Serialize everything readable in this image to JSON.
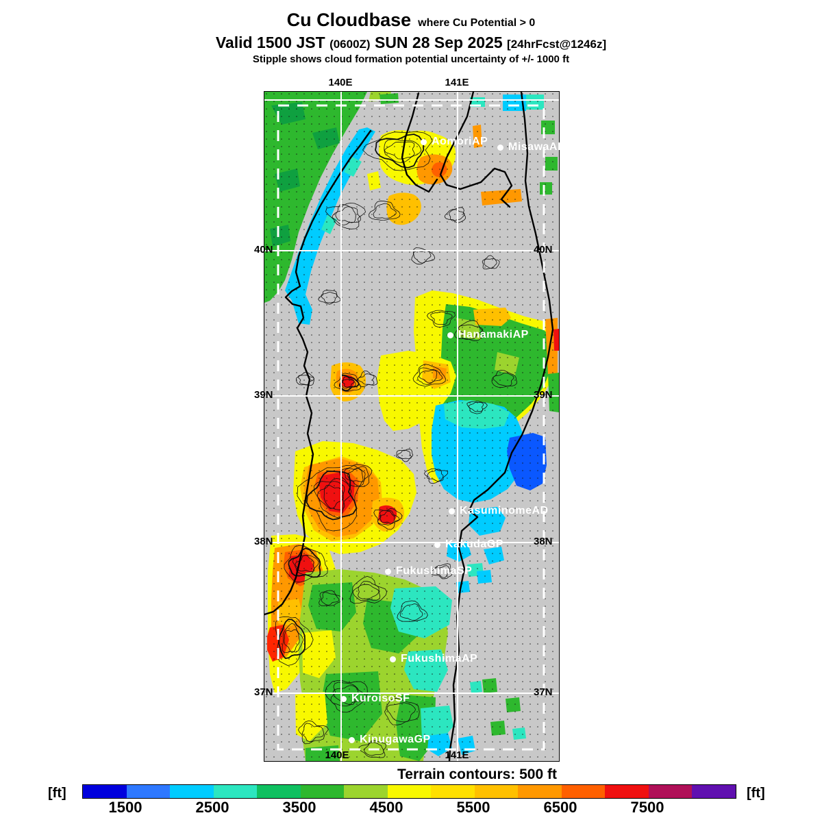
{
  "header": {
    "title": "Cu Cloudbase",
    "title_qualifier": "where Cu Potential > 0",
    "valid_prefix": "Valid 1500 JST",
    "valid_utc": "(0600Z)",
    "valid_date": "SUN 28 Sep 2025",
    "valid_fcst": "[24hrFcst@1246z]",
    "stipple_note": "Stipple shows cloud formation potential uncertainty of +/- 1000 ft"
  },
  "map": {
    "lon_labels": [
      "140E",
      "141E"
    ],
    "lat_labels": [
      "40N",
      "39N",
      "38N",
      "37N"
    ],
    "stations": [
      {
        "name": "AomoriAP"
      },
      {
        "name": "MisawaAD"
      },
      {
        "name": "HanamakiAP"
      },
      {
        "name": "KasuminomeAD"
      },
      {
        "name": "KakudaGP"
      },
      {
        "name": "FukushimaSP"
      },
      {
        "name": "FukushimaAP"
      },
      {
        "name": "KuroisoSF"
      },
      {
        "name": "KinugawaGP"
      }
    ]
  },
  "colorbar": {
    "note": "Terrain contours: 500 ft",
    "unit": "[ft]",
    "ticks": [
      "1500",
      "2500",
      "3500",
      "4500",
      "5500",
      "6500",
      "7500"
    ],
    "range_ft": [
      1000,
      8500
    ],
    "step_ft": 500,
    "colors": [
      "#0000dd",
      "#2e78ff",
      "#00ccff",
      "#2ce6c0",
      "#0fc060",
      "#2eb82e",
      "#9cd42e",
      "#f8f800",
      "#ffe000",
      "#ffc000",
      "#ff9800",
      "#ff6000",
      "#f01010",
      "#b01058",
      "#6010b0"
    ]
  }
}
